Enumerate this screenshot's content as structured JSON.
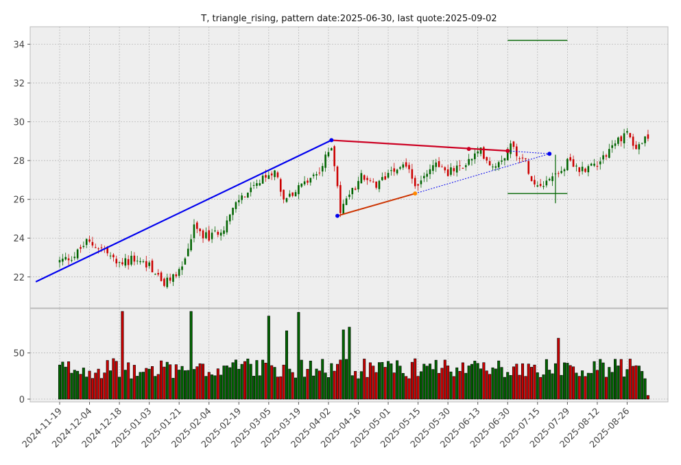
{
  "chart_data": {
    "type": "candlestick",
    "title": "T, triangle_rising, pattern date:2025-06-30, last quote:2025-09-02",
    "xlabel": "",
    "ylabel": "",
    "price_ylim": [
      20.4,
      34.9
    ],
    "price_yticks": [
      "22",
      "24",
      "26",
      "28",
      "30",
      "32",
      "34"
    ],
    "volume_ylim": [
      -3,
      98
    ],
    "volume_yticks": [
      "0",
      "50"
    ],
    "x_tick_labels": [
      "2024-11-19",
      "2024-12-04",
      "2024-12-18",
      "2025-01-03",
      "2025-01-21",
      "2025-02-04",
      "2025-02-19",
      "2025-03-05",
      "2025-03-19",
      "2025-04-02",
      "2025-04-16",
      "2025-05-01",
      "2025-05-15",
      "2025-05-30",
      "2025-06-13",
      "2025-06-30",
      "2025-07-15",
      "2025-07-29",
      "2025-08-12",
      "2025-08-26"
    ],
    "x_tick_index": [
      0,
      10,
      20,
      30,
      40,
      50,
      60,
      70,
      80,
      90,
      100,
      110,
      120,
      130,
      140,
      150,
      160,
      170,
      180,
      190
    ],
    "grid": true,
    "colors": {
      "up": "#006400",
      "down": "#cc0000",
      "resistance": "#cc0022",
      "support": "#cc3300",
      "trend": "#0000ee",
      "target": "#006400",
      "background": "#eeeeee",
      "grid": "#b0b0b0"
    },
    "anchors": [
      {
        "i": -8,
        "p": 21.7
      },
      {
        "i": 0,
        "p": 22.8
      },
      {
        "i": 5,
        "p": 23.1
      },
      {
        "i": 9,
        "p": 23.8
      },
      {
        "i": 15,
        "p": 23.4
      },
      {
        "i": 19,
        "p": 22.7
      },
      {
        "i": 25,
        "p": 22.9
      },
      {
        "i": 30,
        "p": 22.6
      },
      {
        "i": 35,
        "p": 21.6
      },
      {
        "i": 41,
        "p": 22.5
      },
      {
        "i": 45,
        "p": 24.5
      },
      {
        "i": 50,
        "p": 24.0
      },
      {
        "i": 55,
        "p": 24.6
      },
      {
        "i": 60,
        "p": 26.0
      },
      {
        "i": 66,
        "p": 26.7
      },
      {
        "i": 72,
        "p": 27.6
      },
      {
        "i": 75,
        "p": 26.0
      },
      {
        "i": 78,
        "p": 26.3
      },
      {
        "i": 82,
        "p": 26.8
      },
      {
        "i": 87,
        "p": 27.4
      },
      {
        "i": 91,
        "p": 28.8
      },
      {
        "i": 93,
        "p": 26.8
      },
      {
        "i": 94,
        "p": 25.3
      },
      {
        "i": 96,
        "p": 26.0
      },
      {
        "i": 101,
        "p": 27.2
      },
      {
        "i": 106,
        "p": 26.6
      },
      {
        "i": 111,
        "p": 27.6
      },
      {
        "i": 116,
        "p": 27.8
      },
      {
        "i": 120,
        "p": 26.5
      },
      {
        "i": 122,
        "p": 27.3
      },
      {
        "i": 126,
        "p": 27.9
      },
      {
        "i": 130,
        "p": 27.4
      },
      {
        "i": 134,
        "p": 27.6
      },
      {
        "i": 138,
        "p": 28.1
      },
      {
        "i": 141,
        "p": 28.5
      },
      {
        "i": 145,
        "p": 27.7
      },
      {
        "i": 149,
        "p": 28.3
      },
      {
        "i": 151,
        "p": 28.8
      },
      {
        "i": 156,
        "p": 27.9
      },
      {
        "i": 159,
        "p": 26.8
      },
      {
        "i": 162,
        "p": 26.9
      },
      {
        "i": 166,
        "p": 27.3
      },
      {
        "i": 170,
        "p": 27.9
      },
      {
        "i": 174,
        "p": 27.5
      },
      {
        "i": 180,
        "p": 27.9
      },
      {
        "i": 186,
        "p": 28.9
      },
      {
        "i": 190,
        "p": 29.5
      },
      {
        "i": 193,
        "p": 28.6
      },
      {
        "i": 196,
        "p": 29.1
      }
    ],
    "tall_volume": [
      [
        21,
        95
      ],
      [
        44,
        95
      ],
      [
        70,
        90
      ],
      [
        76,
        74
      ],
      [
        80,
        94
      ],
      [
        95,
        75
      ],
      [
        97,
        78
      ],
      [
        167,
        66
      ]
    ],
    "overlays": {
      "trend_line": [
        {
          "i": -8,
          "p": 21.75
        },
        {
          "i": 91,
          "p": 29.05
        }
      ],
      "resistance_line": [
        {
          "i": 91,
          "p": 29.05
        },
        {
          "i": 150,
          "p": 28.5
        }
      ],
      "support_line": [
        {
          "i": 93,
          "p": 25.15
        },
        {
          "i": 119,
          "p": 26.3
        }
      ],
      "projection_upper": [
        {
          "i": 150,
          "p": 28.5
        },
        {
          "i": 164,
          "p": 28.35
        }
      ],
      "projection_lower": [
        {
          "i": 119,
          "p": 26.3
        },
        {
          "i": 164,
          "p": 28.35
        }
      ],
      "pivot_points": [
        {
          "i": 91,
          "p": 29.05,
          "color": "#0000ee"
        },
        {
          "i": 93,
          "p": 25.15,
          "color": "#0000ee"
        },
        {
          "i": 119,
          "p": 26.3,
          "color": "#ff8800"
        },
        {
          "i": 137,
          "p": 28.6,
          "color": "#cc0022"
        },
        {
          "i": 150,
          "p": 28.5,
          "color": "#cc0022"
        },
        {
          "i": 164,
          "p": 28.35,
          "color": "#0000ee"
        }
      ],
      "target_upper": {
        "i0": 150,
        "i1": 170,
        "p": 34.2
      },
      "target_lower": {
        "i0": 150,
        "i1": 170,
        "p": 26.3
      },
      "target_vertical": {
        "i": 166,
        "p0": 25.8,
        "p1": 28.3
      }
    }
  }
}
